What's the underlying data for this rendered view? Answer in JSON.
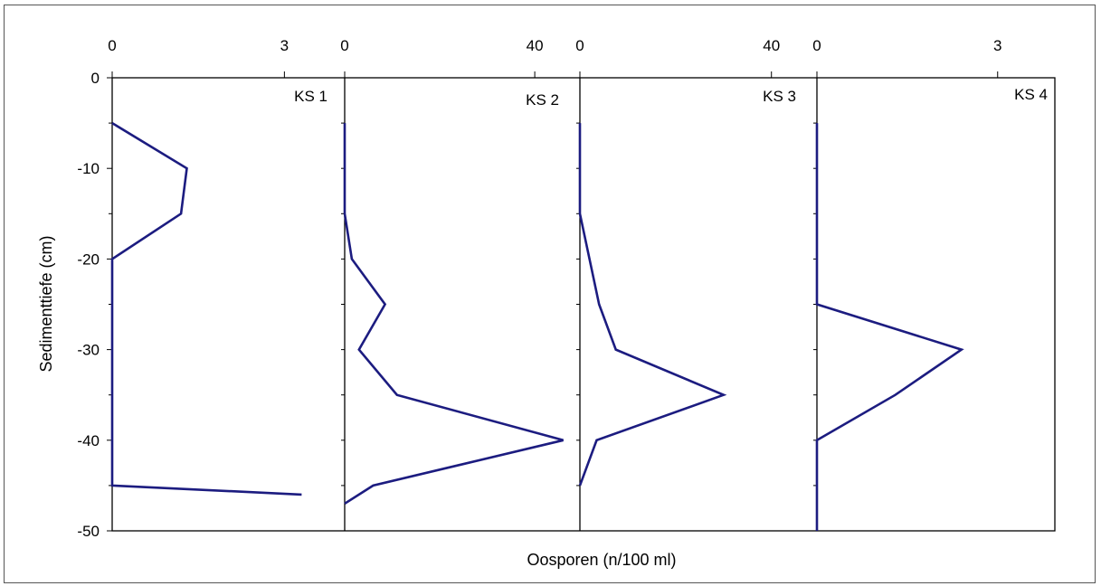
{
  "chart_data": {
    "type": "line",
    "ylabel": "Sedimenttiefe (cm)",
    "xlabel": "Oosporen (n/100 ml)",
    "ylim": [
      -50,
      0
    ],
    "yticks": [
      0,
      -10,
      -20,
      -30,
      -40,
      -50
    ],
    "ytick_labels": [
      "0",
      "-10",
      "-20",
      "-30",
      "-40",
      "-50"
    ],
    "grid": false,
    "line_color": "#1c1c80",
    "panels": [
      {
        "name": "KS 1",
        "xlim": [
          0,
          4.05
        ],
        "xticks": [
          0,
          3
        ],
        "xtick_labels": [
          "0",
          "3"
        ],
        "series": [
          {
            "points": [
              [
                0,
                -5
              ],
              [
                1.3,
                -10
              ],
              [
                1.2,
                -15
              ],
              [
                0,
                -20
              ],
              [
                0,
                -25
              ],
              [
                0,
                -30
              ],
              [
                0,
                -35
              ],
              [
                0,
                -40
              ],
              [
                0,
                -45
              ],
              [
                3.3,
                -46
              ]
            ]
          }
        ]
      },
      {
        "name": "KS 2",
        "xlim": [
          0,
          49.5
        ],
        "xticks": [
          0,
          40
        ],
        "xtick_labels": [
          "0",
          "40"
        ],
        "series": [
          {
            "points": [
              [
                0,
                -5
              ],
              [
                0,
                -10
              ],
              [
                0,
                -15
              ],
              [
                1.5,
                -20
              ],
              [
                8.5,
                -25
              ],
              [
                3,
                -30
              ],
              [
                11,
                -35
              ],
              [
                46,
                -40
              ],
              [
                6,
                -45
              ],
              [
                0,
                -47
              ]
            ]
          }
        ]
      },
      {
        "name": "KS 3",
        "xlim": [
          0,
          49.5
        ],
        "xticks": [
          0,
          40
        ],
        "xtick_labels": [
          "0",
          "40"
        ],
        "series": [
          {
            "points": [
              [
                0,
                -5
              ],
              [
                0,
                -10
              ],
              [
                0,
                -15
              ],
              [
                2,
                -20
              ],
              [
                4,
                -25
              ],
              [
                7.5,
                -30
              ],
              [
                30,
                -35
              ],
              [
                3.5,
                -40
              ],
              [
                0,
                -45
              ]
            ]
          }
        ]
      },
      {
        "name": "KS 4",
        "xlim": [
          0,
          3.95
        ],
        "xticks": [
          0,
          3
        ],
        "xtick_labels": [
          "0",
          "3"
        ],
        "series": [
          {
            "points": [
              [
                0,
                -5
              ],
              [
                0,
                -10
              ],
              [
                0,
                -15
              ],
              [
                0,
                -20
              ],
              [
                0,
                -25
              ],
              [
                2.4,
                -30
              ],
              [
                1.3,
                -35
              ],
              [
                0,
                -40
              ],
              [
                0,
                -45
              ],
              [
                0,
                -50
              ]
            ]
          }
        ]
      }
    ]
  }
}
